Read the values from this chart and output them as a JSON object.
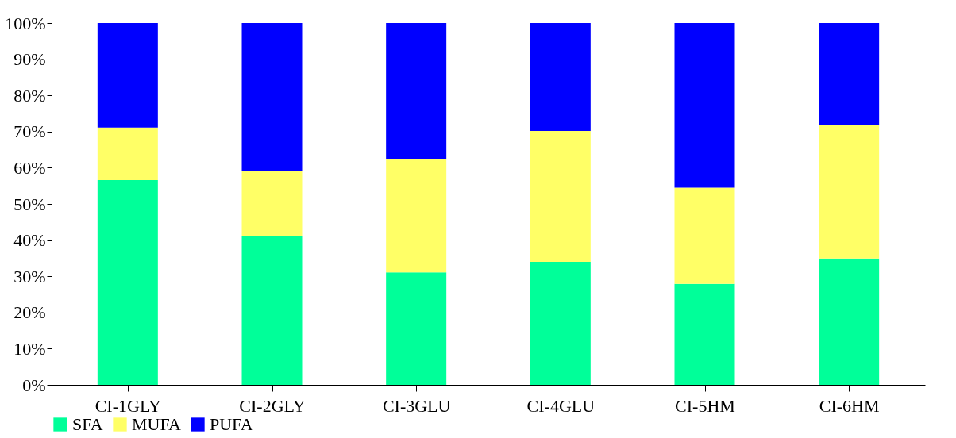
{
  "chart_data": {
    "type": "bar",
    "stacked": true,
    "categories": [
      "CI-1GLY",
      "CI-2GLY",
      "CI-3GLU",
      "CI-4GLU",
      "CI-5HM",
      "CI-6HM"
    ],
    "series": [
      {
        "name": "SFA",
        "color": "#00ff99",
        "values": [
          56.6,
          41.2,
          31.1,
          34.0,
          27.9,
          34.9
        ]
      },
      {
        "name": "MUFA",
        "color": "#ffff66",
        "values": [
          14.5,
          17.8,
          31.2,
          36.2,
          26.6,
          37.0
        ]
      },
      {
        "name": "PUFA",
        "color": "#0000ff",
        "values": [
          28.9,
          41.0,
          37.7,
          29.8,
          45.5,
          28.1
        ]
      }
    ],
    "ylim": [
      0,
      100
    ],
    "yticks": [
      {
        "value": 0,
        "label": "0%"
      },
      {
        "value": 10,
        "label": "10%"
      },
      {
        "value": 20,
        "label": "20%"
      },
      {
        "value": 30,
        "label": "30%"
      },
      {
        "value": 40,
        "label": "40%"
      },
      {
        "value": 50,
        "label": "50%"
      },
      {
        "value": 60,
        "label": "60%"
      },
      {
        "value": 70,
        "label": "70%"
      },
      {
        "value": 80,
        "label": "80%"
      },
      {
        "value": 90,
        "label": "90%"
      },
      {
        "value": 100,
        "label": "100%"
      }
    ],
    "grid": false,
    "legend": "bottom"
  }
}
